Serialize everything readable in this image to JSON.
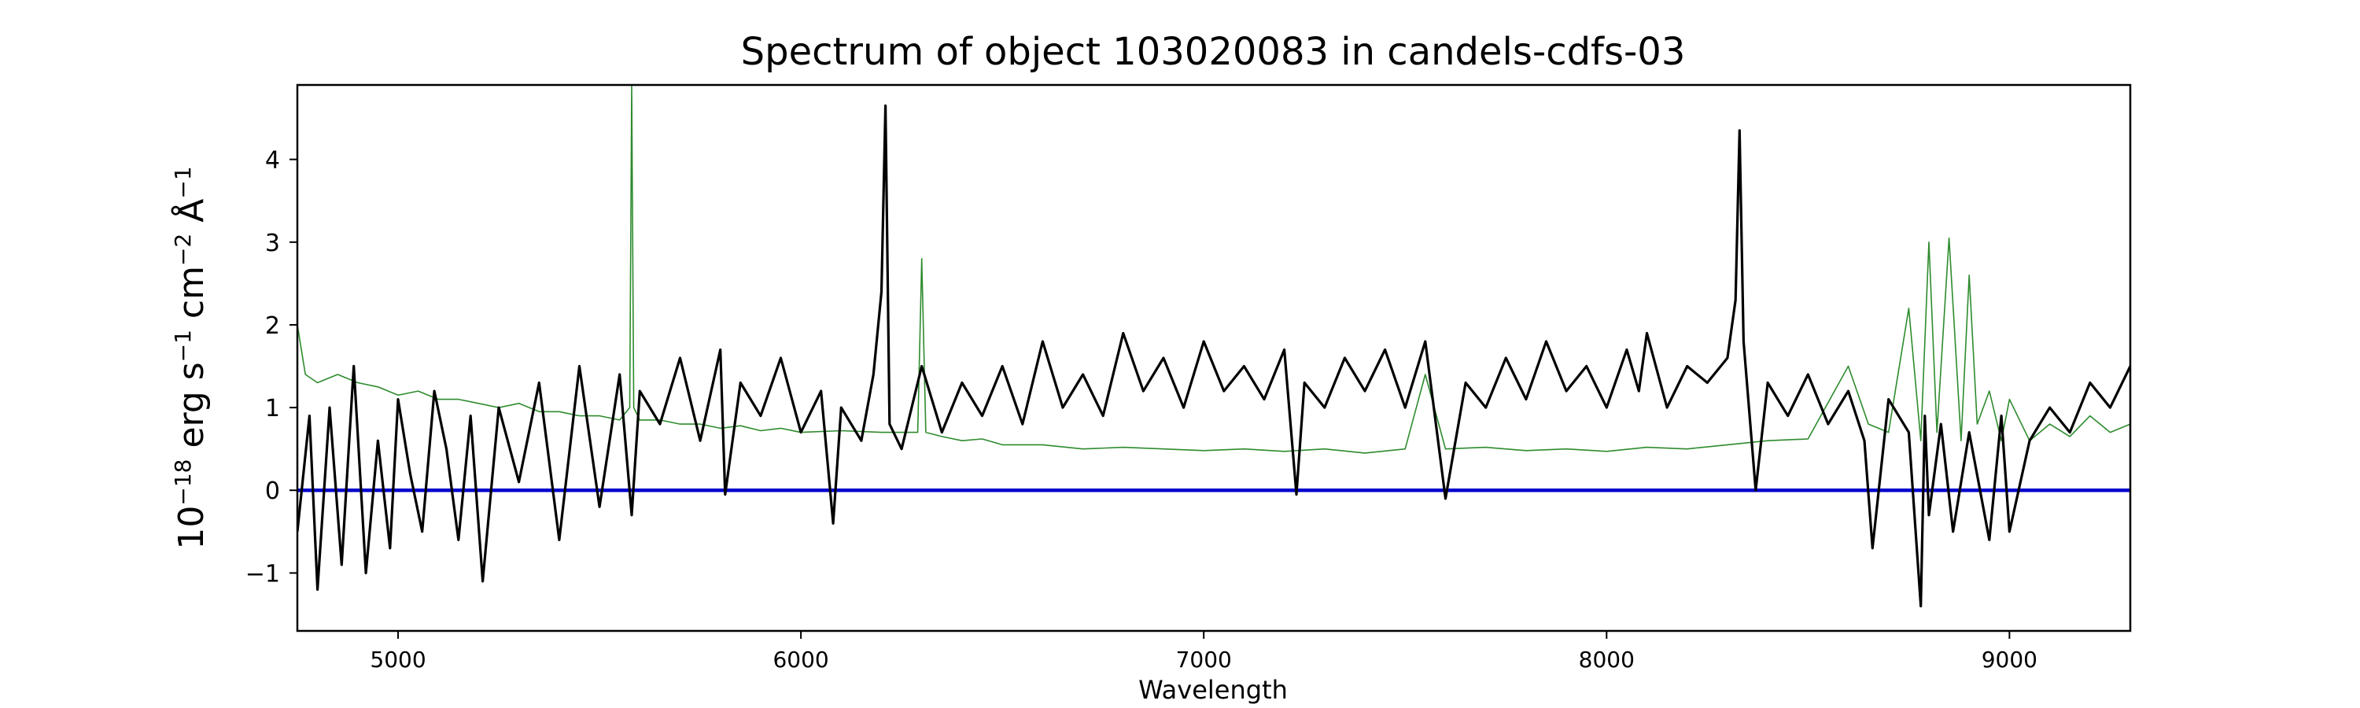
{
  "chart_data": {
    "type": "line",
    "title": "Spectrum of object 103020083 in candels-cdfs-03",
    "xlabel": "Wavelength",
    "ylabel_parts": [
      "10",
      "−18",
      " erg s",
      "−1",
      " cm",
      "−2",
      " Å",
      "−1"
    ],
    "xlim": [
      4750,
      9300
    ],
    "ylim": [
      -1.7,
      4.9
    ],
    "xticks": [
      5000,
      6000,
      7000,
      8000,
      9000
    ],
    "xtick_labels": [
      "5000",
      "6000",
      "7000",
      "8000",
      "9000"
    ],
    "yticks": [
      -1,
      0,
      1,
      2,
      3,
      4
    ],
    "ytick_labels": [
      "−1",
      "0",
      "1",
      "2",
      "3",
      "4"
    ],
    "grid": false,
    "legend": "none",
    "series": [
      {
        "role": "flux",
        "color": "#000000",
        "x": [
          4750,
          4780,
          4800,
          4830,
          4860,
          4890,
          4920,
          4950,
          4980,
          5000,
          5030,
          5060,
          5090,
          5120,
          5150,
          5180,
          5210,
          5250,
          5300,
          5350,
          5400,
          5450,
          5500,
          5550,
          5580,
          5600,
          5650,
          5700,
          5750,
          5800,
          5812,
          5850,
          5900,
          5950,
          6000,
          6050,
          6080,
          6100,
          6150,
          6180,
          6200,
          6210,
          6220,
          6250,
          6300,
          6350,
          6400,
          6450,
          6500,
          6550,
          6600,
          6650,
          6700,
          6750,
          6800,
          6850,
          6900,
          6950,
          7000,
          7050,
          7100,
          7150,
          7200,
          7230,
          7250,
          7300,
          7350,
          7400,
          7450,
          7500,
          7550,
          7600,
          7650,
          7700,
          7750,
          7800,
          7850,
          7900,
          7950,
          8000,
          8050,
          8080,
          8100,
          8150,
          8200,
          8250,
          8300,
          8320,
          8330,
          8340,
          8370,
          8400,
          8450,
          8500,
          8550,
          8600,
          8640,
          8660,
          8700,
          8750,
          8780,
          8790,
          8800,
          8830,
          8860,
          8900,
          8950,
          8980,
          9000,
          9050,
          9100,
          9150,
          9200,
          9250,
          9300
        ],
        "y": [
          -0.5,
          0.9,
          -1.2,
          1.0,
          -0.9,
          1.5,
          -1.0,
          0.6,
          -0.7,
          1.1,
          0.2,
          -0.5,
          1.2,
          0.5,
          -0.6,
          0.9,
          -1.1,
          1.0,
          0.1,
          1.3,
          -0.6,
          1.5,
          -0.2,
          1.4,
          -0.3,
          1.2,
          0.8,
          1.6,
          0.6,
          1.7,
          -0.05,
          1.3,
          0.9,
          1.6,
          0.7,
          1.2,
          -0.4,
          1.0,
          0.6,
          1.4,
          2.4,
          4.65,
          0.8,
          0.5,
          1.5,
          0.7,
          1.3,
          0.9,
          1.5,
          0.8,
          1.8,
          1.0,
          1.4,
          0.9,
          1.9,
          1.2,
          1.6,
          1.0,
          1.8,
          1.2,
          1.5,
          1.1,
          1.7,
          -0.05,
          1.3,
          1.0,
          1.6,
          1.2,
          1.7,
          1.0,
          1.8,
          -0.1,
          1.3,
          1.0,
          1.6,
          1.1,
          1.8,
          1.2,
          1.5,
          1.0,
          1.7,
          1.2,
          1.9,
          1.0,
          1.5,
          1.3,
          1.6,
          2.3,
          4.35,
          1.8,
          0.0,
          1.3,
          0.9,
          1.4,
          0.8,
          1.2,
          0.6,
          -0.7,
          1.1,
          0.7,
          -1.4,
          0.9,
          -0.3,
          0.8,
          -0.5,
          0.7,
          -0.6,
          0.9,
          -0.5,
          0.6,
          1.0,
          0.7,
          1.3,
          1.0,
          1.5
        ]
      },
      {
        "role": "error",
        "color": "#2e8b2e",
        "x": [
          4750,
          4770,
          4800,
          4850,
          4900,
          4950,
          5000,
          5050,
          5100,
          5150,
          5200,
          5250,
          5300,
          5350,
          5400,
          5450,
          5500,
          5550,
          5575,
          5580,
          5585,
          5600,
          5650,
          5700,
          5750,
          5800,
          5850,
          5900,
          5950,
          6000,
          6100,
          6200,
          6290,
          6300,
          6310,
          6350,
          6400,
          6450,
          6500,
          6600,
          6700,
          6800,
          6900,
          7000,
          7100,
          7200,
          7300,
          7400,
          7500,
          7550,
          7600,
          7700,
          7800,
          7900,
          8000,
          8100,
          8200,
          8300,
          8400,
          8500,
          8600,
          8650,
          8700,
          8750,
          8780,
          8800,
          8820,
          8850,
          8880,
          8900,
          8920,
          8950,
          8980,
          9000,
          9050,
          9100,
          9150,
          9200,
          9250,
          9300
        ],
        "y": [
          2.0,
          1.4,
          1.3,
          1.4,
          1.3,
          1.25,
          1.15,
          1.2,
          1.1,
          1.1,
          1.05,
          1.0,
          1.05,
          0.95,
          0.95,
          0.9,
          0.9,
          0.85,
          1.0,
          4.9,
          1.0,
          0.85,
          0.85,
          0.8,
          0.8,
          0.75,
          0.78,
          0.72,
          0.75,
          0.7,
          0.72,
          0.7,
          0.7,
          2.8,
          0.7,
          0.65,
          0.6,
          0.62,
          0.55,
          0.55,
          0.5,
          0.52,
          0.5,
          0.48,
          0.5,
          0.47,
          0.5,
          0.45,
          0.5,
          1.4,
          0.5,
          0.52,
          0.48,
          0.5,
          0.47,
          0.52,
          0.5,
          0.55,
          0.6,
          0.62,
          1.5,
          0.8,
          0.7,
          2.2,
          0.6,
          3.0,
          0.7,
          3.05,
          0.6,
          2.6,
          0.8,
          1.2,
          0.6,
          1.1,
          0.6,
          0.8,
          0.65,
          0.9,
          0.7,
          0.8
        ]
      },
      {
        "role": "zero",
        "color": "#0000cc",
        "x": [
          4750,
          9300
        ],
        "y": [
          0,
          0
        ]
      }
    ]
  }
}
